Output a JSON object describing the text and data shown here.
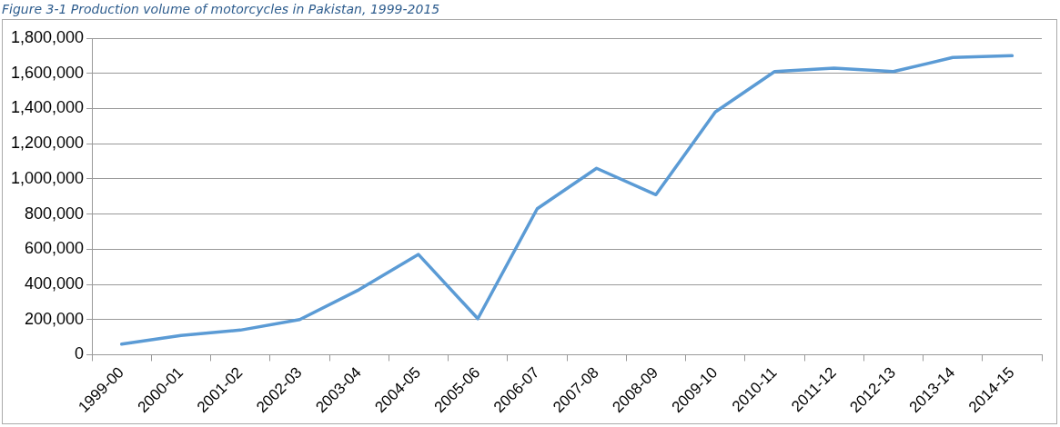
{
  "chart_data": {
    "type": "line",
    "title": "Figure 3-1 Production volume of motorcycles in Pakistan, 1999-2015",
    "categories": [
      "1999-00",
      "2000-01",
      "2001-02",
      "2002-03",
      "2003-04",
      "2004-05",
      "2005-06",
      "2006-07",
      "2007-08",
      "2008-09",
      "2009-10",
      "2010-11",
      "2011-12",
      "2012-13",
      "2013-14",
      "2014-15"
    ],
    "values": [
      60000,
      110000,
      140000,
      200000,
      370000,
      570000,
      205000,
      830000,
      1060000,
      910000,
      1380000,
      1610000,
      1630000,
      1610000,
      1690000,
      1700000
    ],
    "color": "#5b9bd5",
    "ylim": [
      0,
      1800000
    ],
    "yticks": [
      0,
      {
        "value": 200000,
        "label": "200,000"
      },
      {
        "value": 400000,
        "label": "400,000"
      },
      {
        "value": 600000,
        "label": "600,000"
      },
      {
        "value": 800000,
        "label": "800,000"
      },
      {
        "value": 1000000,
        "label": "1,000,000"
      },
      {
        "value": 1200000,
        "label": "1,200,000"
      },
      {
        "value": 1400000,
        "label": "1,400,000"
      },
      {
        "value": 1600000,
        "label": "1,600,000"
      },
      {
        "value": 1800000,
        "label": "1,800,000"
      }
    ],
    "grid": "y",
    "marker": "none",
    "line_style": "solid",
    "legend": false
  }
}
